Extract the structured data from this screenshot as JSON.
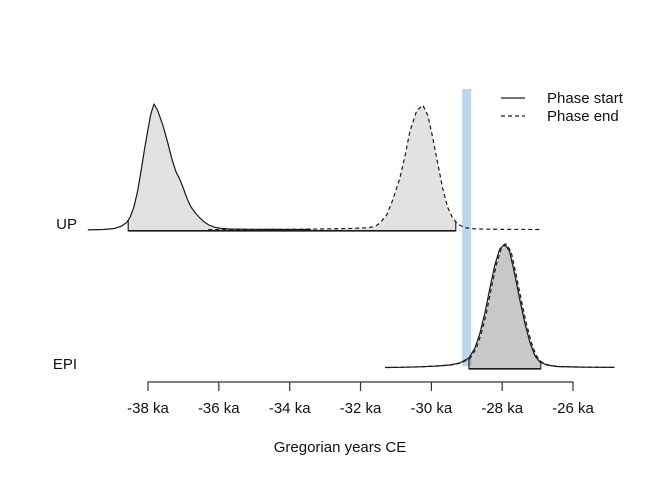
{
  "chart_data": {
    "type": "area",
    "title": "",
    "xlabel": "Gregorian years CE",
    "x_unit": "ka",
    "xlim": [
      -40.2,
      -24.5
    ],
    "x_ticks": [
      {
        "value": -38,
        "label": "-38 ka"
      },
      {
        "value": -36,
        "label": "-36 ka"
      },
      {
        "value": -34,
        "label": "-34 ka"
      },
      {
        "value": -32,
        "label": "-32 ka"
      },
      {
        "value": -30,
        "label": "-30 ka"
      },
      {
        "value": -28,
        "label": "-28 ka"
      },
      {
        "value": -26,
        "label": "-26 ka"
      }
    ],
    "legend": [
      {
        "label": "Phase start",
        "line_style": "solid"
      },
      {
        "label": "Phase end",
        "line_style": "dashed"
      }
    ],
    "event_band": {
      "x_from": -29.13,
      "x_to": -28.88,
      "color": "#bdd6ee"
    },
    "colors": {
      "curve": "#1a1a1a",
      "density_fill": "rgba(0,0,0,0.115)",
      "axis": "#333333",
      "range_bar": "#1a1a1a"
    },
    "rows": [
      {
        "label": "UP",
        "phase_range": [
          -38.56,
          -29.31
        ],
        "start_peak": -37.83,
        "end_peak": -30.24,
        "start_density": [
          [
            -39.7,
            0.001
          ],
          [
            -39.25,
            0.004
          ],
          [
            -38.95,
            0.012
          ],
          [
            -38.75,
            0.03
          ],
          [
            -38.6,
            0.06
          ],
          [
            -38.5,
            0.105
          ],
          [
            -38.4,
            0.18
          ],
          [
            -38.3,
            0.3
          ],
          [
            -38.2,
            0.46
          ],
          [
            -38.1,
            0.64
          ],
          [
            -38.0,
            0.8
          ],
          [
            -37.92,
            0.92
          ],
          [
            -37.83,
            1.0
          ],
          [
            -37.73,
            0.95
          ],
          [
            -37.58,
            0.83
          ],
          [
            -37.45,
            0.7
          ],
          [
            -37.33,
            0.57
          ],
          [
            -37.22,
            0.47
          ],
          [
            -37.1,
            0.4
          ],
          [
            -37.0,
            0.33
          ],
          [
            -36.9,
            0.25
          ],
          [
            -36.8,
            0.19
          ],
          [
            -36.68,
            0.14
          ],
          [
            -36.55,
            0.1
          ],
          [
            -36.42,
            0.065
          ],
          [
            -36.28,
            0.04
          ],
          [
            -36.12,
            0.022
          ],
          [
            -35.95,
            0.013
          ],
          [
            -35.7,
            0.008
          ],
          [
            -35.3,
            0.006
          ],
          [
            -34.7,
            0.005
          ],
          [
            -34.0,
            0.004
          ],
          [
            -33.4,
            0.004
          ]
        ],
        "end_density": [
          [
            -36.3,
            0.003
          ],
          [
            -35.4,
            0.004
          ],
          [
            -34.5,
            0.005
          ],
          [
            -33.7,
            0.006
          ],
          [
            -33.1,
            0.008
          ],
          [
            -32.6,
            0.01
          ],
          [
            -32.2,
            0.013
          ],
          [
            -31.95,
            0.016
          ],
          [
            -31.79,
            0.018
          ],
          [
            -31.6,
            0.028
          ],
          [
            -31.45,
            0.055
          ],
          [
            -31.26,
            0.12
          ],
          [
            -31.09,
            0.24
          ],
          [
            -30.89,
            0.41
          ],
          [
            -30.75,
            0.58
          ],
          [
            -30.61,
            0.78
          ],
          [
            -30.41,
            0.95
          ],
          [
            -30.24,
            0.99
          ],
          [
            -30.1,
            0.91
          ],
          [
            -29.96,
            0.73
          ],
          [
            -29.82,
            0.53
          ],
          [
            -29.68,
            0.33
          ],
          [
            -29.54,
            0.18
          ],
          [
            -29.4,
            0.095
          ],
          [
            -29.25,
            0.045
          ],
          [
            -29.06,
            0.018
          ],
          [
            -28.78,
            0.009
          ],
          [
            -28.35,
            0.006
          ],
          [
            -27.79,
            0.005
          ],
          [
            -26.94,
            0.004
          ]
        ]
      },
      {
        "label": "EPI",
        "phase_range": [
          -28.94,
          -26.91
        ],
        "start_peak": -27.93,
        "end_peak": -27.89,
        "start_density": [
          [
            -31.31,
            0.004
          ],
          [
            -30.89,
            0.006
          ],
          [
            -30.33,
            0.01
          ],
          [
            -29.9,
            0.015
          ],
          [
            -29.48,
            0.024
          ],
          [
            -29.2,
            0.04
          ],
          [
            -28.94,
            0.08
          ],
          [
            -28.77,
            0.16
          ],
          [
            -28.63,
            0.28
          ],
          [
            -28.49,
            0.44
          ],
          [
            -28.35,
            0.64
          ],
          [
            -28.21,
            0.83
          ],
          [
            -28.07,
            0.96
          ],
          [
            -27.93,
            1.0
          ],
          [
            -27.79,
            0.94
          ],
          [
            -27.65,
            0.76
          ],
          [
            -27.51,
            0.56
          ],
          [
            -27.36,
            0.36
          ],
          [
            -27.22,
            0.21
          ],
          [
            -27.08,
            0.1
          ],
          [
            -26.94,
            0.05
          ],
          [
            -26.74,
            0.024
          ],
          [
            -26.46,
            0.012
          ],
          [
            -25.95,
            0.008
          ],
          [
            -25.25,
            0.006
          ],
          [
            -24.83,
            0.005
          ]
        ],
        "end_density": [
          [
            -31.27,
            0.004
          ],
          [
            -30.85,
            0.006
          ],
          [
            -30.29,
            0.01
          ],
          [
            -29.86,
            0.015
          ],
          [
            -29.44,
            0.024
          ],
          [
            -29.16,
            0.04
          ],
          [
            -28.9,
            0.08
          ],
          [
            -28.73,
            0.16
          ],
          [
            -28.59,
            0.28
          ],
          [
            -28.45,
            0.44
          ],
          [
            -28.31,
            0.64
          ],
          [
            -28.17,
            0.83
          ],
          [
            -28.03,
            0.96
          ],
          [
            -27.89,
            1.0
          ],
          [
            -27.75,
            0.94
          ],
          [
            -27.61,
            0.76
          ],
          [
            -27.47,
            0.56
          ],
          [
            -27.32,
            0.36
          ],
          [
            -27.18,
            0.21
          ],
          [
            -27.04,
            0.1
          ],
          [
            -26.9,
            0.05
          ],
          [
            -26.7,
            0.024
          ],
          [
            -26.42,
            0.012
          ],
          [
            -25.91,
            0.008
          ],
          [
            -25.21,
            0.006
          ],
          [
            -24.79,
            0.005
          ]
        ]
      }
    ]
  }
}
